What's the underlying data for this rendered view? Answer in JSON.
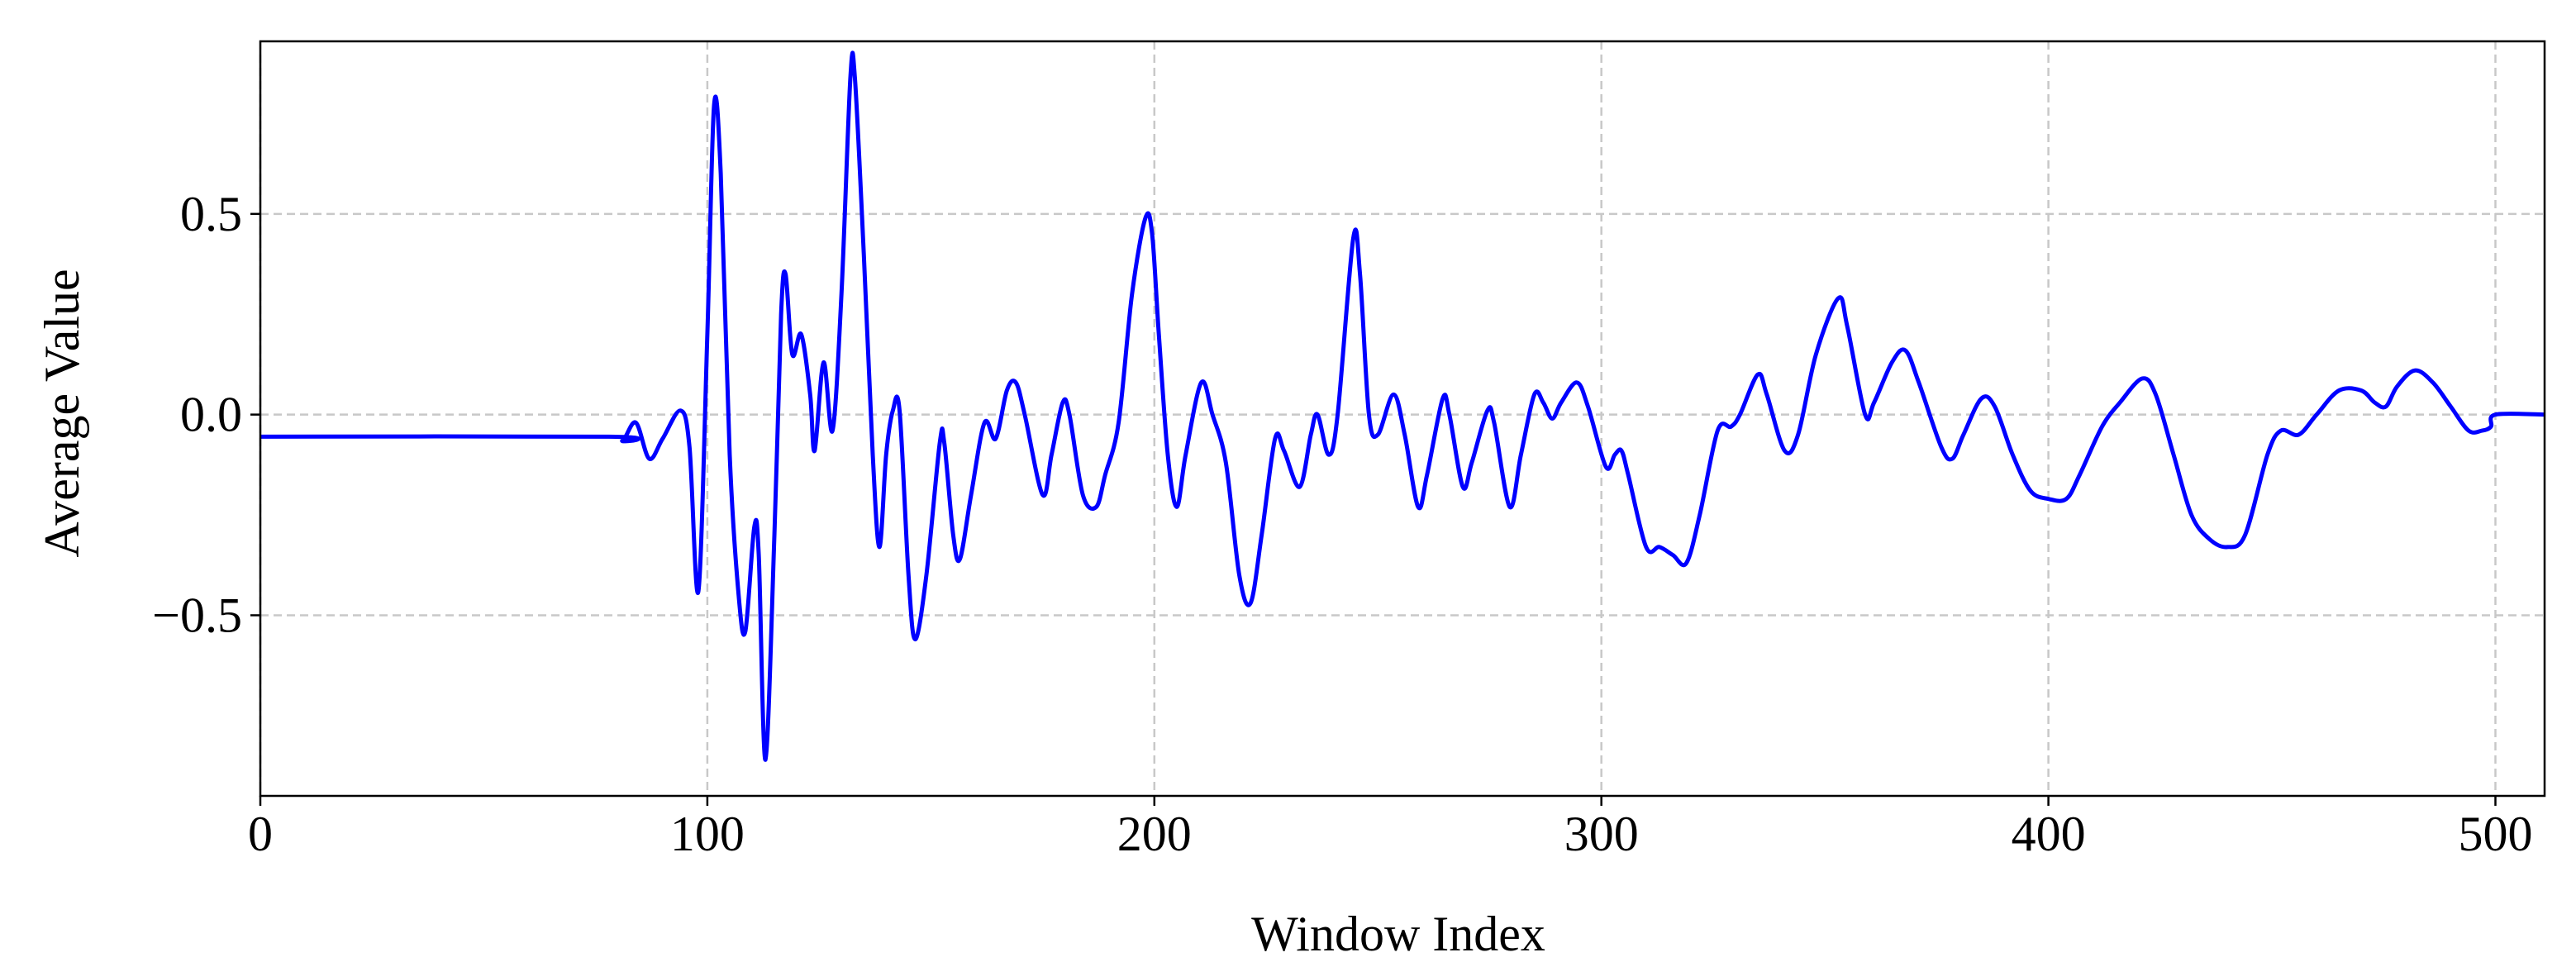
{
  "chart_data": {
    "type": "line",
    "xlabel": "Window Index",
    "ylabel": "Average Value",
    "xlim": [
      0,
      511
    ],
    "ylim": [
      -0.95,
      0.93
    ],
    "xticks": [
      0,
      100,
      200,
      300,
      400,
      500
    ],
    "yticks": [
      {
        "value": -0.5,
        "label": "−0.5"
      },
      {
        "value": 0,
        "label": "0.0"
      },
      0.5
    ],
    "grid": true,
    "series": [
      {
        "name": "Average Value",
        "color": "#0000ff",
        "x": [
          0,
          78,
          81,
          84,
          87,
          90,
          94,
          96,
          98,
          100,
          101.5,
          103,
          105,
          107,
          108.5,
          110.5,
          111.5,
          113,
          115,
          116.5,
          117.5,
          119,
          121,
          123,
          124,
          126,
          128,
          130,
          132,
          133,
          135,
          137,
          138.5,
          140,
          141.5,
          143,
          145,
          146.5,
          149,
          152,
          153,
          155,
          156.5,
          159,
          162,
          164.5,
          167,
          169,
          171,
          175,
          177,
          179.5,
          181,
          184,
          187,
          189,
          192,
          195,
          198,
          199.5,
          201,
          203,
          205,
          207,
          210.5,
          213,
          216,
          219,
          221.5,
          224,
          227,
          229,
          232.5,
          235,
          236.5,
          239,
          241,
          244.5,
          246,
          248,
          250,
          253.5,
          256,
          259,
          261,
          264.5,
          266,
          269,
          271,
          274.5,
          276,
          279.5,
          282,
          285,
          287,
          289,
          291,
          294.5,
          297,
          301,
          303,
          304.5,
          306,
          310,
          313,
          316,
          319,
          322,
          326,
          329,
          331,
          335,
          337,
          341,
          344,
          348,
          353,
          355,
          359,
          361,
          365,
          368,
          371,
          376,
          378.5,
          381,
          385,
          388,
          392,
          396,
          400,
          404,
          407,
          412,
          416,
          421,
          424,
          428,
          432,
          436,
          440,
          444,
          449,
          452,
          456,
          460,
          465,
          470,
          473,
          475.5,
          478,
          482,
          486,
          490,
          494,
          497,
          499,
          500,
          511
        ],
        "values": [
          -0.055,
          -0.055,
          -0.065,
          -0.02,
          -0.11,
          -0.06,
          0.01,
          -0.08,
          -0.44,
          0.2,
          0.77,
          0.6,
          -0.1,
          -0.45,
          -0.54,
          -0.28,
          -0.35,
          -0.86,
          -0.3,
          0.25,
          0.35,
          0.15,
          0.2,
          0.05,
          -0.09,
          0.13,
          -0.04,
          0.3,
          0.84,
          0.84,
          0.4,
          -0.1,
          -0.33,
          -0.1,
          0.01,
          0.01,
          -0.4,
          -0.56,
          -0.4,
          -0.07,
          -0.07,
          -0.3,
          -0.36,
          -0.2,
          -0.02,
          -0.06,
          0.06,
          0.08,
          0.0,
          -0.2,
          -0.1,
          0.03,
          0.0,
          -0.2,
          -0.23,
          -0.15,
          -0.02,
          0.3,
          0.49,
          0.45,
          0.2,
          -0.1,
          -0.23,
          -0.1,
          0.08,
          0.0,
          -0.12,
          -0.4,
          -0.47,
          -0.3,
          -0.06,
          -0.09,
          -0.18,
          -0.05,
          0.0,
          -0.1,
          0.0,
          0.44,
          0.35,
          0.0,
          -0.05,
          0.05,
          -0.05,
          -0.23,
          -0.15,
          0.04,
          0.0,
          -0.18,
          -0.12,
          0.01,
          -0.02,
          -0.23,
          -0.1,
          0.05,
          0.03,
          -0.01,
          0.03,
          0.08,
          0.02,
          -0.13,
          -0.1,
          -0.09,
          -0.15,
          -0.33,
          -0.33,
          -0.35,
          -0.37,
          -0.25,
          -0.04,
          -0.03,
          0.0,
          0.1,
          0.05,
          -0.09,
          -0.05,
          0.15,
          0.29,
          0.22,
          0.0,
          0.03,
          0.13,
          0.16,
          0.08,
          -0.08,
          -0.11,
          -0.05,
          0.04,
          0.02,
          -0.1,
          -0.19,
          -0.21,
          -0.21,
          -0.15,
          -0.03,
          0.03,
          0.09,
          0.05,
          -0.1,
          -0.25,
          -0.31,
          -0.33,
          -0.3,
          -0.1,
          -0.04,
          -0.05,
          0.0,
          0.06,
          0.06,
          0.03,
          0.02,
          0.07,
          0.11,
          0.08,
          0.02,
          -0.04,
          -0.04,
          -0.03,
          0.0,
          0.0
        ]
      }
    ]
  }
}
